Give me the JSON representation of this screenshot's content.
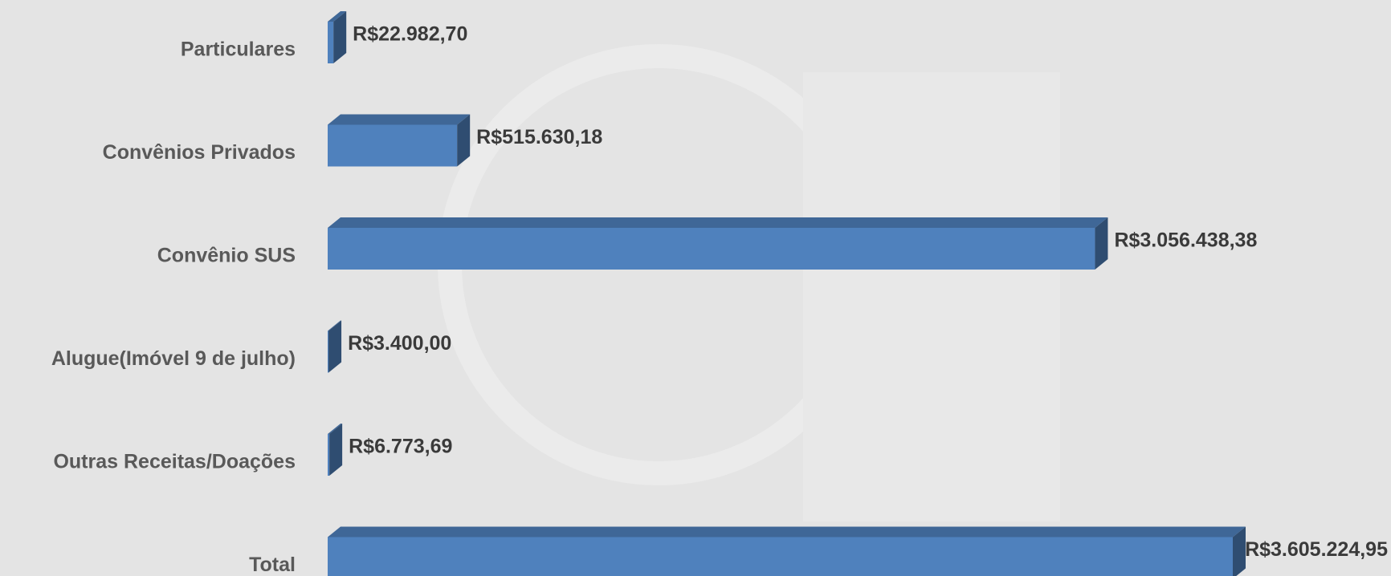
{
  "chart_data": {
    "type": "bar3d_horizontal",
    "categories": [
      "Particulares",
      "Convênios Privados",
      "Convênio SUS",
      "Alugue(Imóvel 9 de julho)",
      "Outras Receitas/Doações",
      "Total"
    ],
    "values": [
      22982.7,
      515630.18,
      3056438.38,
      3400.0,
      6773.69,
      3605224.95
    ],
    "value_labels": [
      "R$22.982,70",
      "R$515.630,18",
      "R$3.056.438,38",
      "R$3.400,00",
      "R$6.773,69",
      "R$3.605.224,95"
    ],
    "color": "#4f81bd"
  }
}
